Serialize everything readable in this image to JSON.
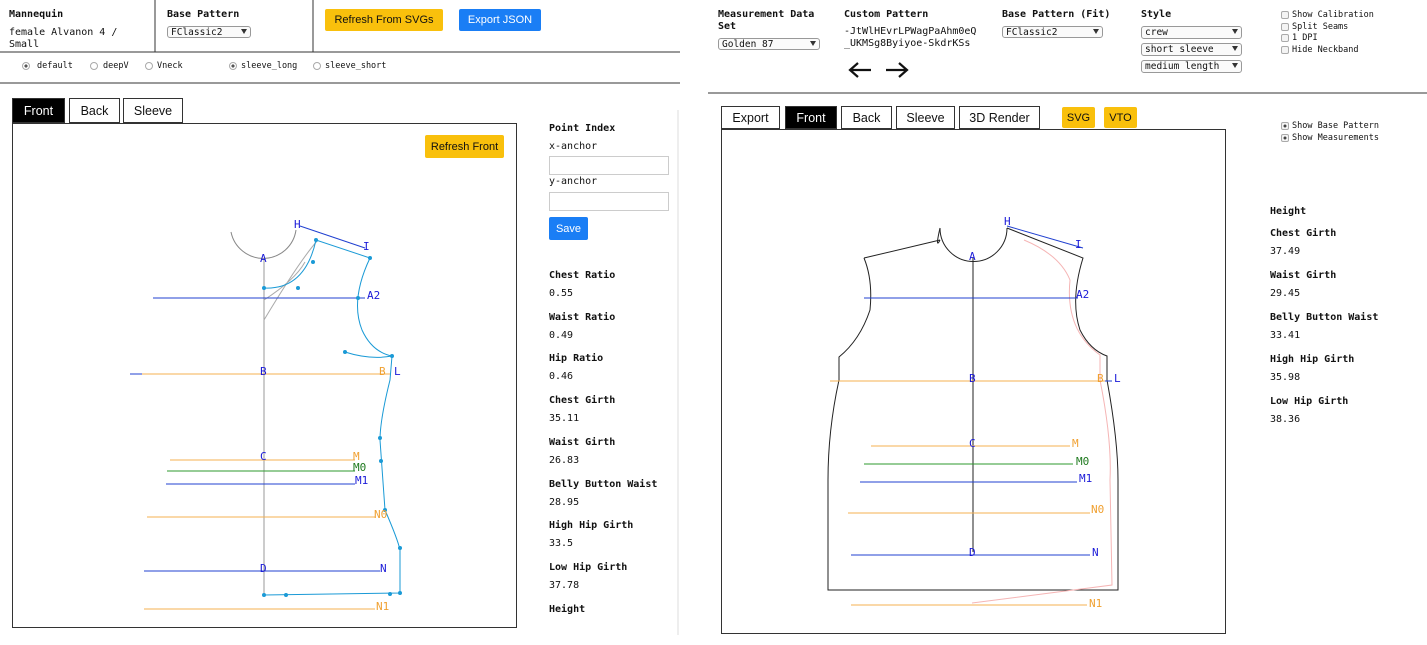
{
  "left": {
    "header": {
      "mannequin_label": "Mannequin",
      "mannequin_value": "female Alvanon 4 / Small",
      "base_pattern_label": "Base Pattern",
      "base_pattern_select": "FClassic2",
      "refresh_button": "Refresh From SVGs",
      "export_button": "Export JSON"
    },
    "radios": [
      "default",
      "deepV",
      "Vneck",
      "sleeve_long",
      "sleeve_short"
    ],
    "tabs": [
      "Front",
      "Back",
      "Sleeve"
    ],
    "refresh_front": "Refresh Front",
    "point_index": "Point Index",
    "x_anchor": "x-anchor",
    "y_anchor": "y-anchor",
    "save": "Save",
    "stats": [
      {
        "label": "Chest Ratio",
        "value": 0.55
      },
      {
        "label": "Waist Ratio",
        "value": 0.49
      },
      {
        "label": "Hip Ratio",
        "value": 0.46
      },
      {
        "label": "Chest Girth",
        "value": 35.11
      },
      {
        "label": "Waist Girth",
        "value": 26.83
      },
      {
        "label": "Belly Button Waist",
        "value": 28.95
      },
      {
        "label": "High Hip Girth",
        "value": 33.5
      },
      {
        "label": "Low Hip Girth",
        "value": 37.78
      },
      {
        "label": "Height"
      }
    ],
    "pattern_labels": [
      "A",
      "H",
      "I",
      "A2",
      "B",
      "B",
      "L",
      "C",
      "M",
      "M0",
      "M1",
      "N0",
      "D",
      "N",
      "N1"
    ]
  },
  "right": {
    "header": {
      "measurement_label": "Measurement Data Set",
      "measurement_select": "Golden 87",
      "custom_pattern_label": "Custom Pattern",
      "custom_pattern_value": "-JtWlHEvrLPWagPaAhm0eQ_UKMSg8Byiyoe-SkdrKSs",
      "base_pattern_label": "Base Pattern (Fit)",
      "base_pattern_select": "FClassic2",
      "style_label": "Style",
      "style_selects": [
        "crew",
        "short sleeve",
        "medium length"
      ]
    },
    "checkboxes": [
      "Show Calibration",
      "Split Seams",
      "1 DPI",
      "Hide Neckband"
    ],
    "tabs": [
      "Export",
      "Front",
      "Back",
      "Sleeve",
      "3D Render"
    ],
    "buttons": [
      "SVG",
      "VTO"
    ],
    "options": [
      "Show Base Pattern",
      "Show Measurements"
    ],
    "stats": [
      {
        "label": "Height"
      },
      {
        "label": "Chest Girth",
        "value": 37.49
      },
      {
        "label": "Waist Girth",
        "value": 29.45
      },
      {
        "label": "Belly Button Waist",
        "value": 33.41
      },
      {
        "label": "High Hip Girth",
        "value": 35.98
      },
      {
        "label": "Low Hip Girth",
        "value": 38.36
      }
    ],
    "pattern_labels": [
      "A",
      "H",
      "I",
      "A2",
      "B",
      "B",
      "L",
      "C",
      "M",
      "M0",
      "M1",
      "N0",
      "D",
      "N",
      "N1"
    ]
  }
}
